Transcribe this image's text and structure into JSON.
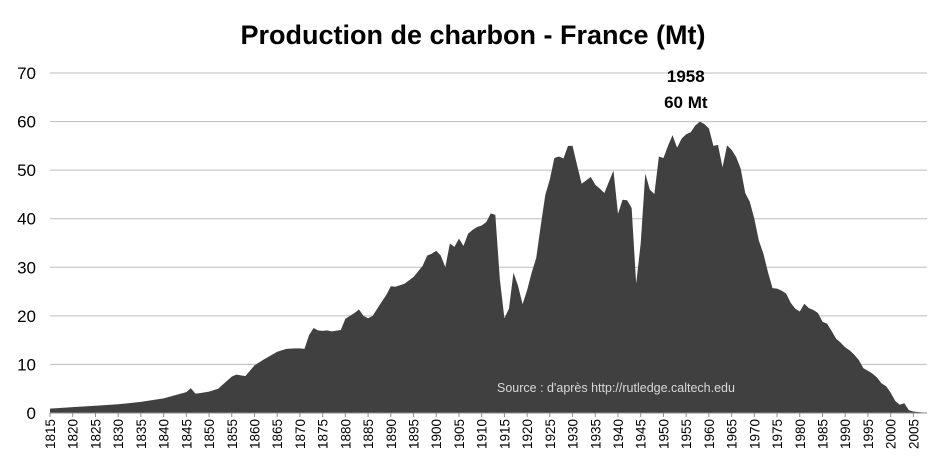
{
  "chart_data": {
    "type": "area",
    "title": "Production de charbon - France (Mt)",
    "xlabel": "",
    "ylabel": "",
    "ylim": [
      0,
      70
    ],
    "xlim": [
      1815,
      2008
    ],
    "yticks": [
      0,
      10,
      20,
      30,
      40,
      50,
      60,
      70
    ],
    "xticks": [
      1815,
      1820,
      1825,
      1830,
      1835,
      1840,
      1845,
      1850,
      1855,
      1860,
      1865,
      1870,
      1875,
      1880,
      1885,
      1890,
      1895,
      1900,
      1905,
      1910,
      1915,
      1920,
      1925,
      1930,
      1935,
      1940,
      1945,
      1950,
      1955,
      1960,
      1965,
      1970,
      1975,
      1980,
      1985,
      1990,
      1995,
      2000,
      2005
    ],
    "grid": true,
    "fill_color": "#404040",
    "annotation": {
      "x": 1958,
      "y": 60,
      "line1": "1958",
      "line2": "60 Mt"
    },
    "source": "Source : d'après http://rutledge.caltech.edu",
    "x": [
      1815,
      1820,
      1825,
      1830,
      1835,
      1840,
      1845,
      1846,
      1847,
      1848,
      1850,
      1852,
      1855,
      1856,
      1858,
      1860,
      1862,
      1865,
      1867,
      1869,
      1870,
      1871,
      1872,
      1873,
      1874,
      1875,
      1876,
      1877,
      1879,
      1880,
      1882,
      1883,
      1884,
      1885,
      1886,
      1888,
      1889,
      1890,
      1891,
      1893,
      1895,
      1897,
      1898,
      1899,
      1900,
      1901,
      1902,
      1903,
      1904,
      1905,
      1906,
      1907,
      1908,
      1909,
      1910,
      1911,
      1912,
      1913,
      1914,
      1915,
      1916,
      1917,
      1918,
      1919,
      1920,
      1921,
      1922,
      1923,
      1924,
      1925,
      1926,
      1927,
      1928,
      1929,
      1930,
      1931,
      1932,
      1933,
      1934,
      1935,
      1936,
      1937,
      1938,
      1939,
      1940,
      1941,
      1942,
      1943,
      1944,
      1945,
      1946,
      1947,
      1948,
      1949,
      1950,
      1951,
      1952,
      1953,
      1954,
      1955,
      1956,
      1957,
      1958,
      1959,
      1960,
      1961,
      1962,
      1963,
      1964,
      1965,
      1966,
      1967,
      1968,
      1969,
      1970,
      1971,
      1972,
      1973,
      1974,
      1975,
      1976,
      1977,
      1978,
      1979,
      1980,
      1981,
      1982,
      1983,
      1984,
      1985,
      1986,
      1987,
      1988,
      1989,
      1990,
      1991,
      1992,
      1993,
      1994,
      1995,
      1996,
      1997,
      1998,
      1999,
      2000,
      2001,
      2002,
      2003,
      2004,
      2005,
      2006,
      2007,
      2008
    ],
    "values": [
      0.9,
      1.2,
      1.5,
      1.8,
      2.3,
      3.0,
      4.3,
      5.1,
      4.0,
      4.1,
      4.4,
      5.0,
      7.5,
      7.9,
      7.6,
      9.8,
      11.0,
      12.6,
      13.2,
      13.3,
      13.3,
      13.2,
      16.0,
      17.5,
      17.0,
      16.9,
      17.0,
      16.8,
      17.1,
      19.4,
      20.6,
      21.3,
      20.0,
      19.5,
      20.0,
      22.9,
      24.3,
      26.1,
      26.0,
      26.6,
      28.0,
      30.3,
      32.4,
      32.8,
      33.4,
      32.4,
      30.0,
      34.9,
      34.2,
      35.9,
      34.4,
      36.9,
      37.7,
      38.3,
      38.6,
      39.3,
      41.1,
      40.8,
      27.5,
      19.5,
      21.5,
      28.9,
      26.2,
      22.4,
      25.3,
      28.9,
      31.9,
      38.6,
      44.9,
      48.1,
      52.5,
      52.8,
      52.4,
      55.0,
      55.0,
      51.0,
      47.2,
      47.9,
      48.6,
      47.0,
      46.2,
      45.3,
      47.6,
      49.9,
      41.0,
      43.9,
      43.8,
      42.2,
      26.6,
      35.0,
      49.3,
      46.0,
      45.1,
      52.8,
      52.5,
      55.0,
      57.2,
      54.6,
      56.5,
      57.4,
      57.8,
      59.2,
      60.0,
      59.5,
      58.6,
      55.0,
      55.2,
      50.6,
      55.1,
      54.2,
      52.7,
      50.3,
      45.3,
      43.5,
      40.0,
      35.5,
      32.8,
      29.0,
      25.7,
      25.6,
      25.2,
      24.6,
      22.7,
      21.5,
      20.9,
      22.5,
      21.6,
      21.2,
      20.6,
      18.8,
      18.4,
      16.9,
      15.3,
      14.5,
      13.5,
      12.9,
      12.0,
      10.9,
      9.2,
      8.7,
      8.1,
      7.3,
      6.1,
      5.5,
      4.2,
      2.5,
      1.7,
      2.0,
      0.6,
      0.3,
      0.2,
      0.1,
      0.05
    ]
  }
}
